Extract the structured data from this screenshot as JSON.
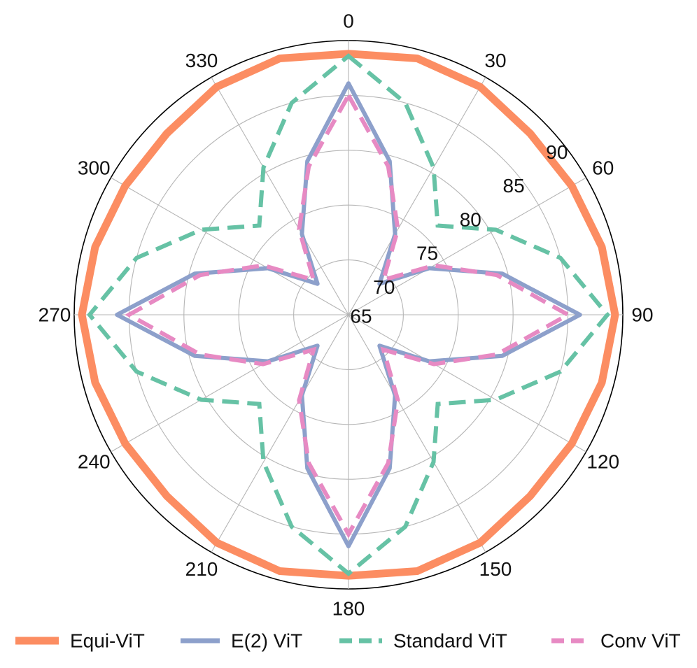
{
  "chart_data": {
    "type": "polar_line",
    "title": "",
    "theta_direction": "clockwise",
    "theta_zero": "top",
    "angle_ticks": [
      0,
      30,
      60,
      90,
      120,
      150,
      180,
      210,
      240,
      270,
      300,
      330
    ],
    "angle_tick_labels": [
      "0",
      "30",
      "60",
      "90",
      "120",
      "150",
      "180",
      "210",
      "240",
      "270",
      "300",
      "330"
    ],
    "radial_range": [
      65,
      90
    ],
    "radial_ticks": [
      65,
      70,
      75,
      80,
      85,
      90
    ],
    "radial_tick_labels": [
      "65",
      "70",
      "75",
      "80",
      "85",
      "90"
    ],
    "grid": true,
    "legend_position": "bottom",
    "theta": [
      0,
      15,
      30,
      45,
      60,
      75,
      90,
      105,
      120,
      135,
      150,
      165,
      180,
      195,
      210,
      225,
      240,
      255,
      270,
      285,
      300,
      315,
      330,
      345
    ],
    "series": [
      {
        "name": "Equi-ViT",
        "color": "#fc8d62",
        "dash": "solid",
        "values": [
          88.8,
          89.2,
          89.0,
          88.4,
          88.5,
          88.9,
          89.3,
          88.9,
          88.5,
          88.4,
          89.0,
          89.2,
          88.8,
          89.2,
          89.0,
          88.4,
          88.5,
          88.9,
          89.3,
          88.9,
          88.5,
          88.4,
          89.0,
          89.2
        ]
      },
      {
        "name": "E(2) ViT",
        "color": "#8da0cb",
        "dash": "solid",
        "values": [
          86.1,
          79.5,
          73.5,
          69.0,
          73.5,
          79.5,
          86.1,
          79.5,
          73.5,
          69.0,
          73.5,
          79.5,
          86.1,
          79.5,
          73.5,
          69.0,
          73.5,
          79.5,
          86.1,
          79.5,
          73.5,
          69.0,
          73.5,
          79.5
        ]
      },
      {
        "name": "Standard ViT",
        "color": "#66c2a5",
        "dash": "dashed",
        "values": [
          88.6,
          85.0,
          80.5,
          76.5,
          80.5,
          85.0,
          88.6,
          85.0,
          80.5,
          76.5,
          80.5,
          85.0,
          88.6,
          85.0,
          80.5,
          76.5,
          80.5,
          85.0,
          88.6,
          85.0,
          80.5,
          76.5,
          80.5,
          85.0
        ]
      },
      {
        "name": "Conv ViT",
        "color": "#e78ac3",
        "dash": "dashed",
        "values": [
          85.0,
          79.0,
          74.0,
          69.5,
          74.0,
          79.0,
          85.0,
          79.0,
          74.0,
          69.5,
          74.0,
          79.0,
          85.0,
          79.0,
          74.0,
          69.5,
          74.0,
          79.0,
          85.0,
          79.0,
          74.0,
          69.5,
          74.0,
          79.0
        ]
      }
    ]
  }
}
